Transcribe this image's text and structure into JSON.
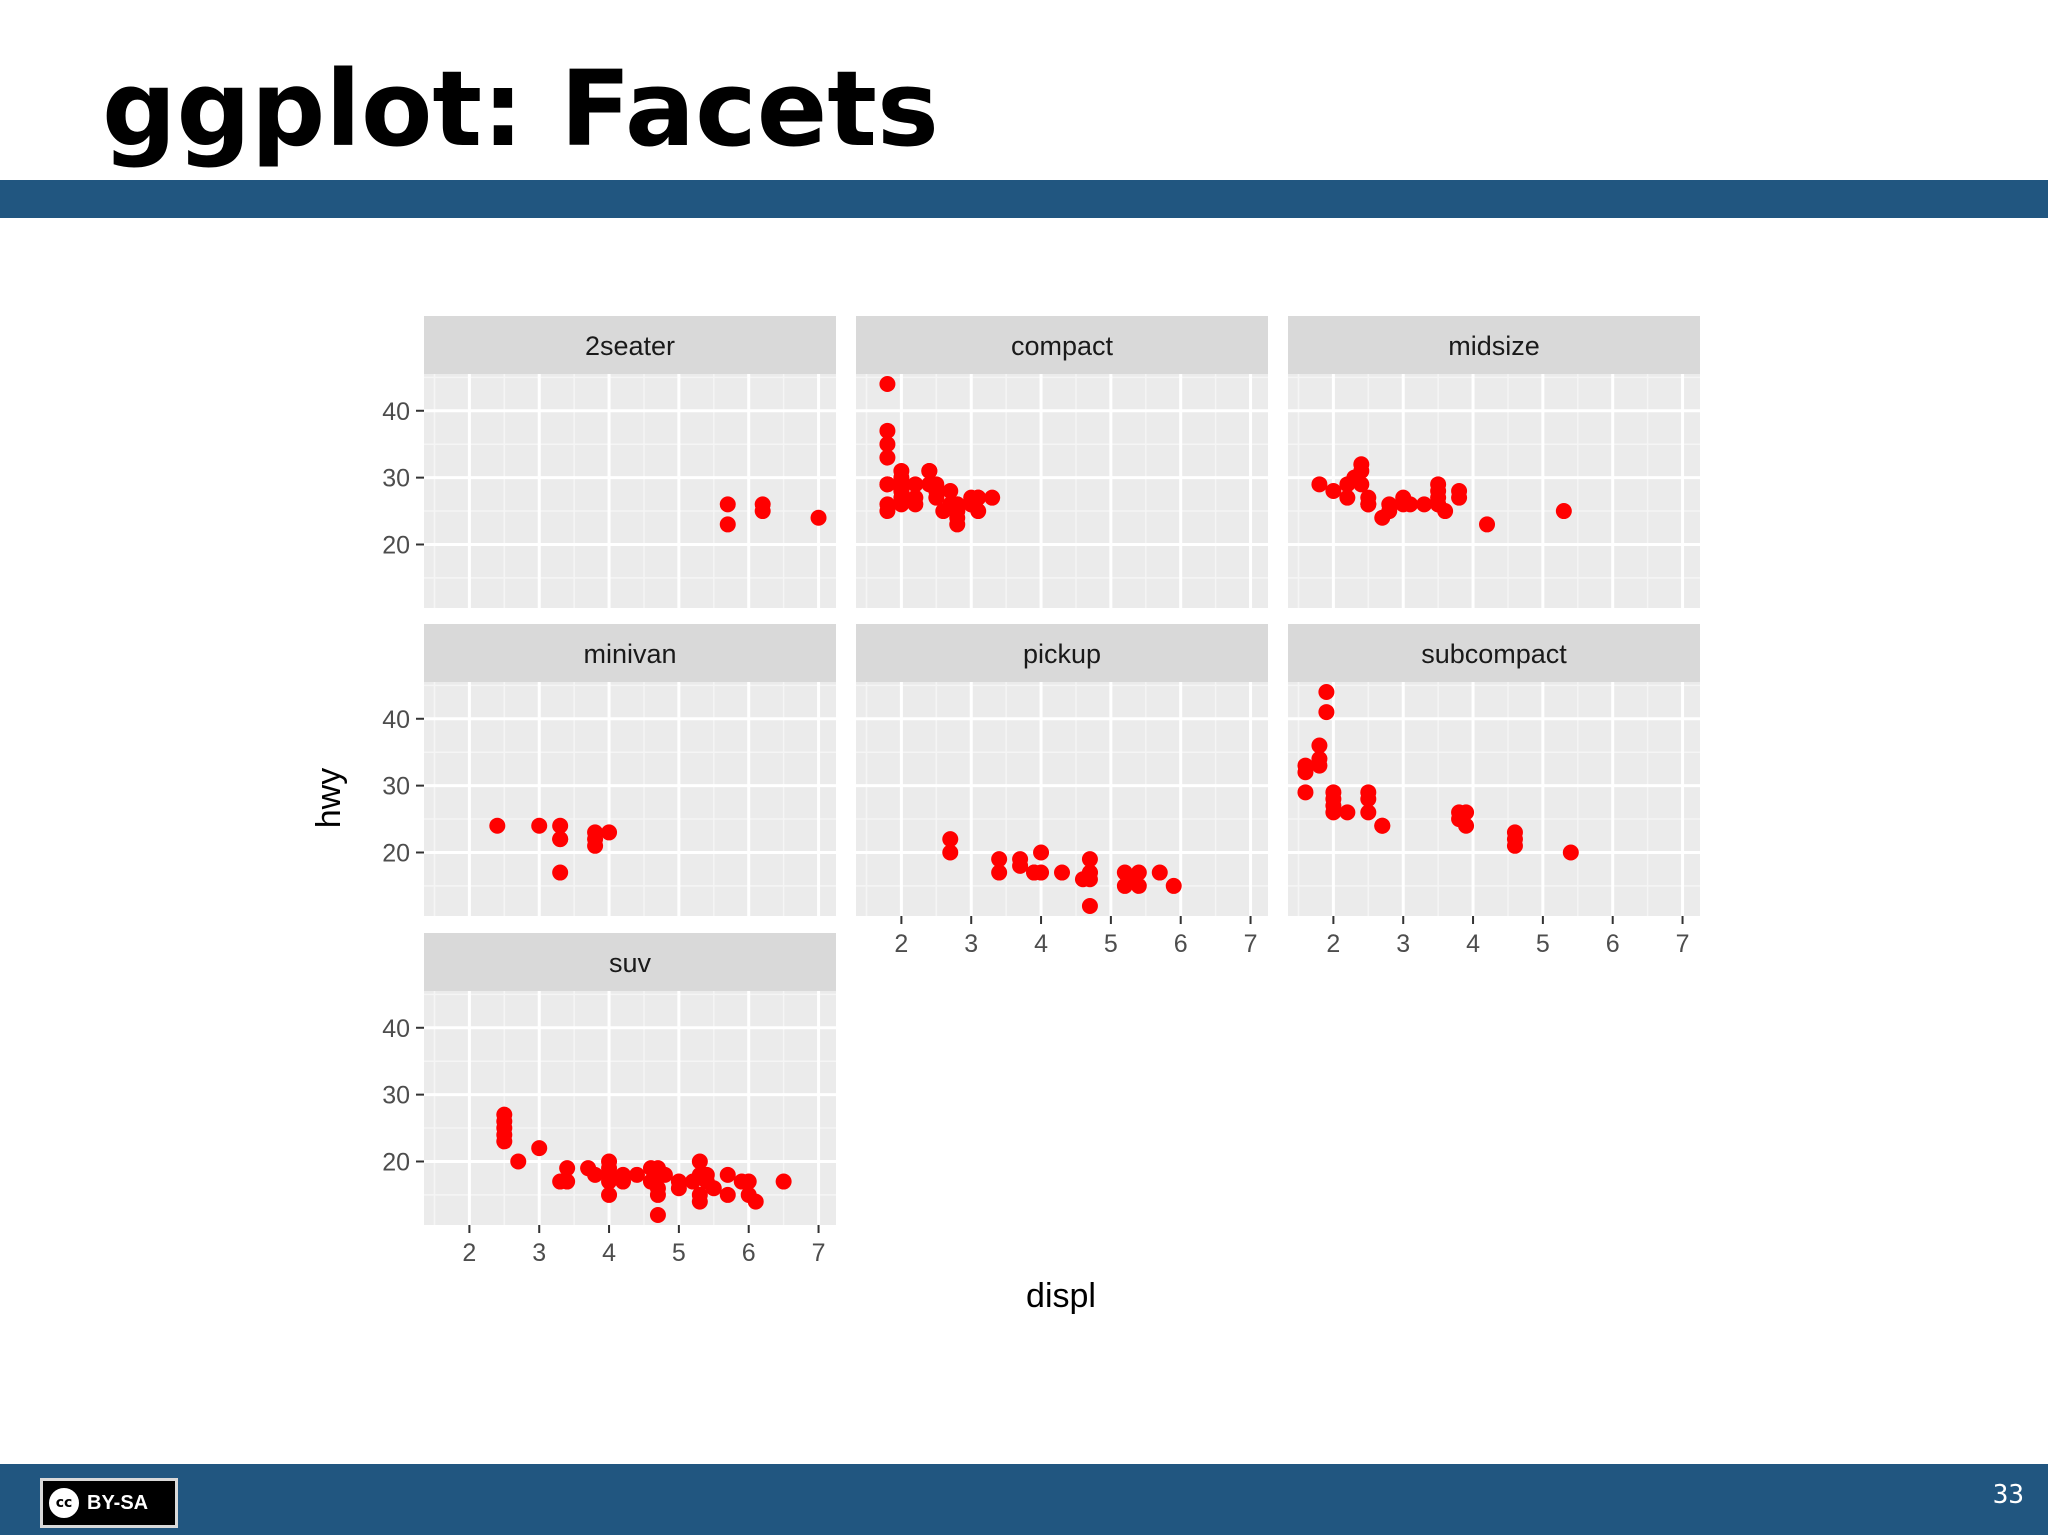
{
  "slide": {
    "title": "ggplot: Facets",
    "page_number": "33",
    "license_label": "BY-SA",
    "license_icon": "cc-icon",
    "accent_color": "#215680"
  },
  "chart_data": {
    "type": "scatter",
    "xlabel": "displ",
    "ylabel": "hwy",
    "xlim": [
      1.35,
      7.25
    ],
    "ylim": [
      10.5,
      45.5
    ],
    "xticks": [
      2,
      3,
      4,
      5,
      6,
      7
    ],
    "yticks": [
      20,
      30,
      40
    ],
    "point_color": "#ff0000",
    "panel_background": "#ebebeb",
    "strip_background": "#d9d9d9",
    "grid": true,
    "facets": [
      {
        "label": "2seater",
        "points": [
          [
            5.7,
            26
          ],
          [
            5.7,
            23
          ],
          [
            6.2,
            26
          ],
          [
            6.2,
            25
          ],
          [
            7.0,
            24
          ]
        ]
      },
      {
        "label": "compact",
        "points": [
          [
            1.8,
            29
          ],
          [
            1.8,
            29
          ],
          [
            2.0,
            31
          ],
          [
            2.0,
            30
          ],
          [
            2.8,
            26
          ],
          [
            2.8,
            26
          ],
          [
            3.1,
            27
          ],
          [
            1.8,
            26
          ],
          [
            1.8,
            25
          ],
          [
            2.0,
            28
          ],
          [
            2.0,
            27
          ],
          [
            2.8,
            25
          ],
          [
            2.8,
            25
          ],
          [
            3.1,
            25
          ],
          [
            3.1,
            27
          ],
          [
            2.2,
            26
          ],
          [
            2.2,
            29
          ],
          [
            2.4,
            31
          ],
          [
            2.4,
            31
          ],
          [
            3.0,
            26
          ],
          [
            3.0,
            26
          ],
          [
            3.3,
            27
          ],
          [
            1.8,
            44
          ],
          [
            1.8,
            37
          ],
          [
            1.8,
            35
          ],
          [
            1.8,
            33
          ],
          [
            2.0,
            29
          ],
          [
            2.0,
            26
          ],
          [
            2.5,
            29
          ],
          [
            2.5,
            27
          ],
          [
            2.5,
            28
          ],
          [
            2.7,
            28
          ],
          [
            2.7,
            26
          ],
          [
            2.8,
            24
          ],
          [
            2.8,
            23
          ],
          [
            2.6,
            25
          ],
          [
            3.0,
            27
          ],
          [
            2.0,
            28
          ],
          [
            2.2,
            27
          ],
          [
            2.4,
            29
          ]
        ]
      },
      {
        "label": "midsize",
        "points": [
          [
            2.4,
            32
          ],
          [
            2.4,
            31
          ],
          [
            2.5,
            27
          ],
          [
            2.5,
            26
          ],
          [
            3.5,
            26
          ],
          [
            3.5,
            28
          ],
          [
            3.6,
            25
          ],
          [
            3.8,
            28
          ],
          [
            1.8,
            29
          ],
          [
            2.0,
            28
          ],
          [
            2.2,
            27
          ],
          [
            2.5,
            26
          ],
          [
            2.8,
            26
          ],
          [
            3.0,
            27
          ],
          [
            3.1,
            26
          ],
          [
            3.5,
            29
          ],
          [
            3.5,
            26
          ],
          [
            3.8,
            27
          ],
          [
            4.2,
            23
          ],
          [
            5.3,
            25
          ],
          [
            2.3,
            30
          ],
          [
            2.7,
            24
          ],
          [
            3.3,
            26
          ],
          [
            2.2,
            29
          ],
          [
            2.4,
            29
          ],
          [
            2.8,
            25
          ],
          [
            3.0,
            26
          ],
          [
            3.5,
            27
          ]
        ]
      },
      {
        "label": "minivan",
        "points": [
          [
            2.4,
            24
          ],
          [
            3.0,
            24
          ],
          [
            3.3,
            22
          ],
          [
            3.3,
            22
          ],
          [
            3.3,
            24
          ],
          [
            3.3,
            17
          ],
          [
            3.8,
            22
          ],
          [
            3.8,
            21
          ],
          [
            3.8,
            23
          ],
          [
            4.0,
            23
          ]
        ]
      },
      {
        "label": "pickup",
        "points": [
          [
            2.7,
            20
          ],
          [
            2.7,
            22
          ],
          [
            3.4,
            17
          ],
          [
            3.4,
            19
          ],
          [
            3.7,
            18
          ],
          [
            3.7,
            19
          ],
          [
            3.9,
            17
          ],
          [
            3.9,
            17
          ],
          [
            4.0,
            20
          ],
          [
            4.0,
            17
          ],
          [
            4.7,
            17
          ],
          [
            4.7,
            19
          ],
          [
            4.7,
            12
          ],
          [
            4.7,
            16
          ],
          [
            4.7,
            17
          ],
          [
            5.2,
            15
          ],
          [
            5.2,
            17
          ],
          [
            5.7,
            17
          ],
          [
            5.9,
            15
          ],
          [
            4.3,
            17
          ],
          [
            5.3,
            16
          ],
          [
            5.4,
            17
          ],
          [
            5.4,
            15
          ],
          [
            4.6,
            16
          ]
        ]
      },
      {
        "label": "subcompact",
        "points": [
          [
            1.6,
            33
          ],
          [
            1.6,
            32
          ],
          [
            1.6,
            29
          ],
          [
            1.8,
            34
          ],
          [
            1.8,
            36
          ],
          [
            1.9,
            44
          ],
          [
            1.9,
            41
          ],
          [
            2.0,
            29
          ],
          [
            2.0,
            28
          ],
          [
            2.0,
            26
          ],
          [
            2.0,
            27
          ],
          [
            2.2,
            26
          ],
          [
            2.5,
            29
          ],
          [
            2.5,
            26
          ],
          [
            2.5,
            28
          ],
          [
            2.7,
            24
          ],
          [
            2.7,
            24
          ],
          [
            3.8,
            26
          ],
          [
            3.8,
            25
          ],
          [
            3.9,
            26
          ],
          [
            3.9,
            24
          ],
          [
            4.6,
            23
          ],
          [
            4.6,
            22
          ],
          [
            4.6,
            21
          ],
          [
            5.4,
            20
          ],
          [
            1.8,
            33
          ]
        ]
      },
      {
        "label": "suv",
        "points": [
          [
            2.5,
            27
          ],
          [
            2.5,
            26
          ],
          [
            2.5,
            25
          ],
          [
            2.5,
            24
          ],
          [
            2.5,
            23
          ],
          [
            2.7,
            20
          ],
          [
            3.0,
            22
          ],
          [
            3.3,
            17
          ],
          [
            3.4,
            19
          ],
          [
            3.4,
            17
          ],
          [
            3.7,
            19
          ],
          [
            4.0,
            20
          ],
          [
            4.0,
            18
          ],
          [
            4.0,
            17
          ],
          [
            4.0,
            15
          ],
          [
            4.0,
            19
          ],
          [
            4.2,
            18
          ],
          [
            4.4,
            18
          ],
          [
            4.6,
            17
          ],
          [
            4.6,
            19
          ],
          [
            4.7,
            16
          ],
          [
            4.7,
            18
          ],
          [
            4.7,
            15
          ],
          [
            4.7,
            12
          ],
          [
            4.7,
            19
          ],
          [
            5.0,
            17
          ],
          [
            5.3,
            20
          ],
          [
            5.3,
            18
          ],
          [
            5.3,
            15
          ],
          [
            5.3,
            14
          ],
          [
            5.4,
            18
          ],
          [
            5.4,
            17
          ],
          [
            5.7,
            18
          ],
          [
            5.7,
            15
          ],
          [
            5.9,
            17
          ],
          [
            6.0,
            15
          ],
          [
            6.1,
            14
          ],
          [
            6.5,
            17
          ],
          [
            5.2,
            17
          ],
          [
            4.8,
            18
          ],
          [
            3.8,
            18
          ],
          [
            4.2,
            17
          ],
          [
            5.0,
            16
          ],
          [
            5.5,
            16
          ],
          [
            6.0,
            17
          ]
        ]
      }
    ]
  }
}
